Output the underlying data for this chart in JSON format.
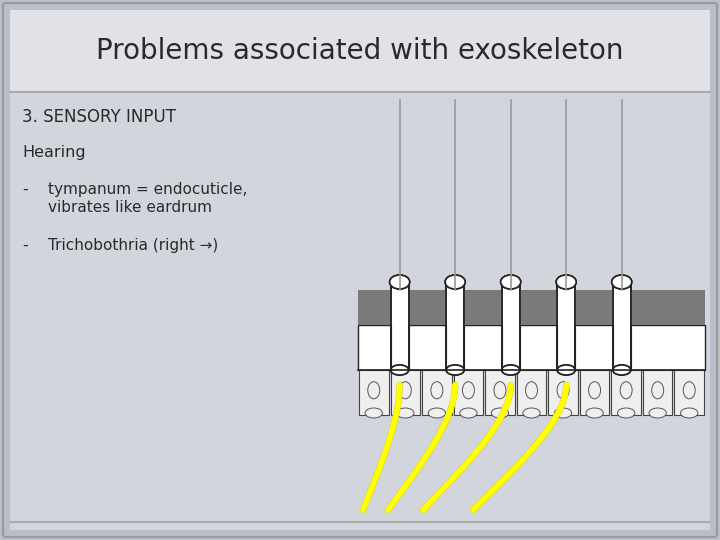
{
  "title": "Problems associated with exoskeleton",
  "title_fontsize": 20,
  "bg_outer": "#b8bfc8",
  "bg_header": "#e0e2e6",
  "bg_content": "#d2d6dc",
  "line1": "3. SENSORY INPUT",
  "line2": "Hearing",
  "bullet1a": "tympanum = endocuticle,",
  "bullet1b": "vibrates like eardrum",
  "bullet2": "Trichobothria (right →)",
  "text_color": "#2a2a2a",
  "gray_band": "#7a7a7a",
  "yellow": "#ffff00",
  "white": "#ffffff",
  "cell_bg": "#f5f5f5",
  "shaft_gray": "#999999",
  "outline": "#222222"
}
